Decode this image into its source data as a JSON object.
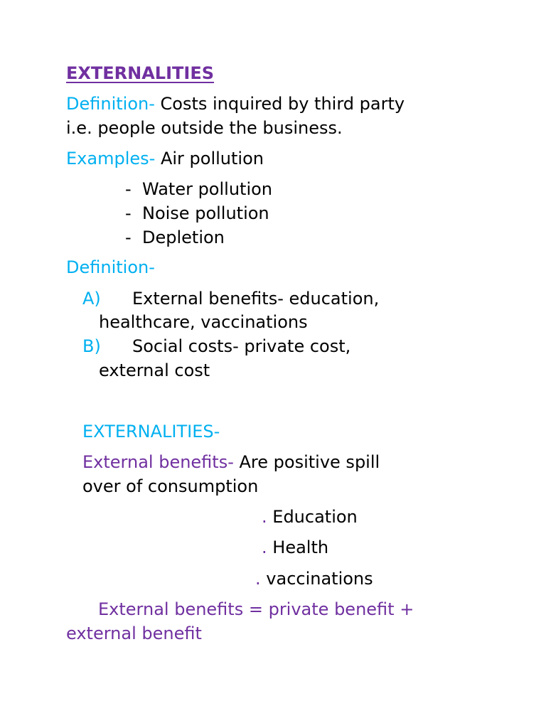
{
  "title": "EXTERNALITIES",
  "definition1": {
    "label": "Definition-",
    "text1": "Costs inquired by third party",
    "text2": "i.e. people outside the business."
  },
  "examples": {
    "label": "Examples-",
    "first": "Air pollution",
    "items": [
      "Water pollution",
      "Noise pollution",
      "Depletion"
    ],
    "bullet": "-"
  },
  "definition2": {
    "label": "Definition-",
    "items": [
      {
        "marker": "A)",
        "line1": "External benefits- education,",
        "line2": "healthcare, vaccinations"
      },
      {
        "marker": "B)",
        "line1": "Social costs- private cost,",
        "line2": "external cost"
      }
    ]
  },
  "section2": {
    "heading": "EXTERNALITIES-",
    "label": "External benefits-",
    "text1": "Are positive spill",
    "text2": "over of consumption",
    "bullet": ".",
    "items": [
      "Education",
      "Health",
      "vaccinations"
    ],
    "formula1": "External benefits = private benefit +",
    "formula2": "external benefit"
  },
  "colors": {
    "purple": "#7030a0",
    "cyan": "#00b0f0"
  }
}
